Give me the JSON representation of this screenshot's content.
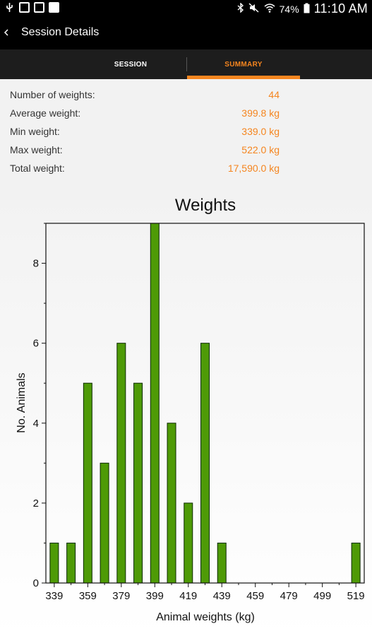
{
  "status_bar": {
    "battery": "74%",
    "time": "11:10 AM"
  },
  "app_bar": {
    "title": "Session Details"
  },
  "tabs": [
    {
      "label": "SESSION",
      "active": false
    },
    {
      "label": "SUMMARY",
      "active": true
    }
  ],
  "summary": {
    "rows": [
      {
        "label": "Number of weights:",
        "value": "44"
      },
      {
        "label": "Average weight:",
        "value": "399.8 kg"
      },
      {
        "label": "Min weight:",
        "value": "339.0 kg"
      },
      {
        "label": "Max weight:",
        "value": "522.0 kg"
      },
      {
        "label": "Total weight:",
        "value": "17,590.0 kg"
      }
    ]
  },
  "colors": {
    "accent": "#f5851f",
    "bar_fill": "#4e9a06",
    "bar_stroke": "#0d2b00"
  },
  "chart_data": {
    "type": "bar",
    "title": "Weights",
    "xlabel": "Animal weights (kg)",
    "ylabel": "No. Animals",
    "x": [
      339,
      349,
      359,
      369,
      379,
      389,
      399,
      409,
      419,
      429,
      439,
      519
    ],
    "values": [
      1,
      1,
      5,
      3,
      6,
      5,
      9,
      4,
      2,
      6,
      1,
      1
    ],
    "xlim": [
      334,
      524
    ],
    "ylim": [
      0,
      9
    ],
    "xticks": [
      "339",
      "359",
      "379",
      "399",
      "419",
      "439",
      "459",
      "479",
      "499",
      "519"
    ],
    "yticks": [
      "0",
      "2",
      "4",
      "6",
      "8"
    ],
    "grid": false,
    "legend": "none"
  }
}
